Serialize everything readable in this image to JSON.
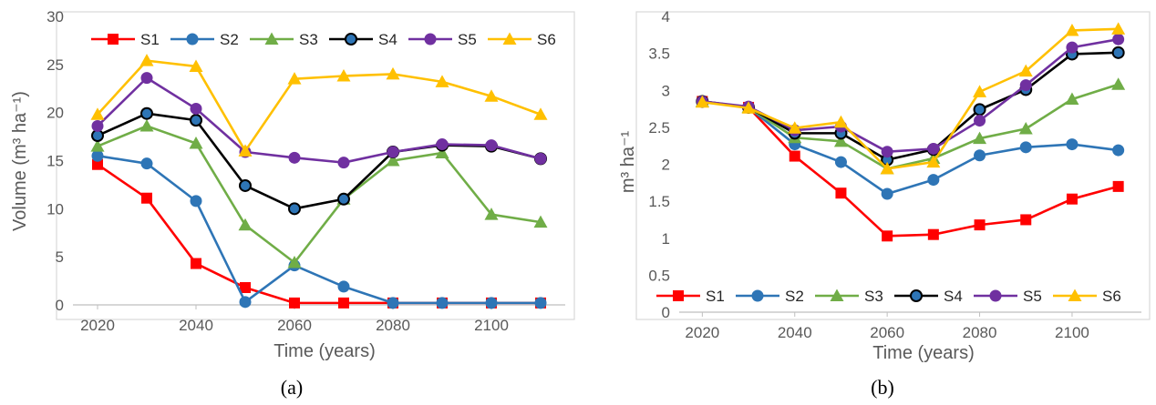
{
  "colors": {
    "S1": "#ff0000",
    "S2": "#2e75b6",
    "S3": "#70ad47",
    "S4": "#000000",
    "S5": "#7030a0",
    "S6": "#ffc000"
  },
  "chart_data": [
    {
      "type": "line",
      "caption": "(a)",
      "xlabel": "Time (years)",
      "ylabel": "Volume (m³ ha⁻¹)",
      "xlim": [
        2015,
        2115
      ],
      "ylim": [
        0,
        30
      ],
      "x_ticks": [
        2020,
        2040,
        2060,
        2080,
        2100
      ],
      "y_ticks": [
        0,
        5,
        10,
        15,
        20,
        25,
        30
      ],
      "legend": "top",
      "grid": false,
      "x": [
        2020,
        2030,
        2040,
        2050,
        2060,
        2070,
        2080,
        2090,
        2100,
        2110
      ],
      "series": [
        {
          "name": "S1",
          "marker": "square",
          "values": [
            14.6,
            11.1,
            4.3,
            1.8,
            0.2,
            0.2,
            0.2,
            0.2,
            0.2,
            0.2
          ]
        },
        {
          "name": "S2",
          "marker": "circle",
          "values": [
            15.5,
            14.7,
            10.8,
            0.3,
            4.1,
            1.9,
            0.2,
            0.2,
            0.2,
            0.2
          ]
        },
        {
          "name": "S3",
          "marker": "triangle",
          "values": [
            16.5,
            18.6,
            16.8,
            8.3,
            4.4,
            11.0,
            15.0,
            15.8,
            9.4,
            8.6
          ]
        },
        {
          "name": "S4",
          "marker": "circle-ring",
          "values": [
            17.6,
            19.9,
            19.2,
            12.4,
            10.0,
            11.0,
            15.9,
            16.6,
            16.5,
            15.2
          ]
        },
        {
          "name": "S5",
          "marker": "circle",
          "values": [
            18.6,
            23.6,
            20.4,
            15.9,
            15.3,
            14.8,
            15.9,
            16.7,
            16.6,
            15.2
          ]
        },
        {
          "name": "S6",
          "marker": "triangle",
          "values": [
            19.8,
            25.4,
            24.8,
            16.0,
            23.5,
            23.8,
            24.0,
            23.2,
            21.7,
            19.8
          ]
        }
      ]
    },
    {
      "type": "line",
      "caption": "(b)",
      "xlabel": "Time (years)",
      "ylabel": "m³ ha⁻¹",
      "xlim": [
        2015,
        2115
      ],
      "ylim": [
        0,
        4
      ],
      "x_ticks": [
        2020,
        2040,
        2060,
        2080,
        2100
      ],
      "y_ticks": [
        0,
        0.5,
        1,
        1.5,
        2,
        2.5,
        3,
        3.5,
        4
      ],
      "legend": "bottom",
      "grid": false,
      "x": [
        2020,
        2030,
        2040,
        2050,
        2060,
        2070,
        2080,
        2090,
        2100,
        2110
      ],
      "series": [
        {
          "name": "S1",
          "marker": "square",
          "values": [
            2.85,
            2.77,
            2.11,
            1.61,
            1.03,
            1.05,
            1.18,
            1.25,
            1.53,
            1.7
          ]
        },
        {
          "name": "S2",
          "marker": "circle",
          "values": [
            2.85,
            2.77,
            2.27,
            2.03,
            1.6,
            1.79,
            2.12,
            2.23,
            2.27,
            2.19
          ]
        },
        {
          "name": "S3",
          "marker": "triangle",
          "values": [
            2.85,
            2.77,
            2.36,
            2.31,
            1.94,
            2.08,
            2.35,
            2.48,
            2.88,
            3.08
          ]
        },
        {
          "name": "S4",
          "marker": "circle-ring",
          "values": [
            2.85,
            2.77,
            2.42,
            2.42,
            2.06,
            2.2,
            2.74,
            3.01,
            3.49,
            3.51
          ]
        },
        {
          "name": "S5",
          "marker": "circle",
          "values": [
            2.85,
            2.78,
            2.46,
            2.51,
            2.17,
            2.21,
            2.59,
            3.07,
            3.58,
            3.69
          ]
        },
        {
          "name": "S6",
          "marker": "triangle",
          "values": [
            2.84,
            2.76,
            2.49,
            2.57,
            1.94,
            2.03,
            2.98,
            3.26,
            3.81,
            3.83
          ]
        }
      ]
    }
  ]
}
